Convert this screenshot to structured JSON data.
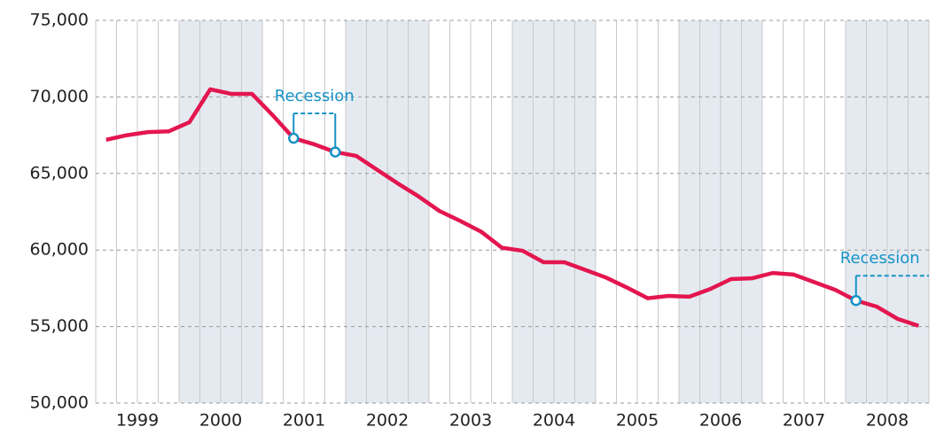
{
  "chart_data": {
    "type": "line",
    "x": [
      1999.125,
      1999.375,
      1999.625,
      1999.875,
      2000.125,
      2000.375,
      2000.625,
      2000.875,
      2001.125,
      2001.375,
      2001.625,
      2001.875,
      2002.125,
      2002.375,
      2002.625,
      2002.875,
      2003.125,
      2003.375,
      2003.625,
      2003.875,
      2004.125,
      2004.375,
      2004.625,
      2004.875,
      2005.125,
      2005.375,
      2005.625,
      2005.875,
      2006.125,
      2006.375,
      2006.625,
      2006.875,
      2007.125,
      2007.375,
      2007.625,
      2007.875,
      2008.125,
      2008.375,
      2008.625,
      2008.875
    ],
    "series": [
      {
        "color": "#e3164f",
        "values": [
          67200,
          67500,
          67700,
          67750,
          68350,
          70500,
          70200,
          70200,
          68800,
          67300,
          66900,
          66400,
          66150,
          65250,
          64350,
          63500,
          62550,
          61900,
          61200,
          60150,
          59950,
          59200,
          59200,
          58700,
          58200,
          57550,
          56850,
          57000,
          56950,
          57450,
          58100,
          58150,
          58500,
          58400,
          57900,
          57400,
          56700,
          56300,
          55500,
          55050
        ]
      }
    ],
    "xlim": [
      1999,
      2009
    ],
    "xticks": [
      {
        "value": 1999.5,
        "label": "1999"
      },
      {
        "value": 2000.5,
        "label": "2000"
      },
      {
        "value": 2001.5,
        "label": "2001"
      },
      {
        "value": 2002.5,
        "label": "2002"
      },
      {
        "value": 2003.5,
        "label": "2003"
      },
      {
        "value": 2004.5,
        "label": "2004"
      },
      {
        "value": 2005.5,
        "label": "2005"
      },
      {
        "value": 2006.5,
        "label": "2006"
      },
      {
        "value": 2007.5,
        "label": "2007"
      },
      {
        "value": 2008.5,
        "label": "2008"
      }
    ],
    "ylim": [
      50000,
      75000
    ],
    "yticks": [
      {
        "value": 50000,
        "label": "50,000"
      },
      {
        "value": 55000,
        "label": "55,000"
      },
      {
        "value": 60000,
        "label": "60,000"
      },
      {
        "value": 65000,
        "label": "65,000"
      },
      {
        "value": 70000,
        "label": "70,000"
      },
      {
        "value": 75000,
        "label": "75,000"
      }
    ],
    "grid": true,
    "bands": [
      [
        2000,
        2001
      ],
      [
        2002,
        2003
      ],
      [
        2004,
        2005
      ],
      [
        2006,
        2007
      ],
      [
        2008,
        2009
      ]
    ],
    "annotations": [
      {
        "text": "Recession",
        "x": [
          2001.375,
          2001.875
        ],
        "color": "#1793c6"
      },
      {
        "text": "Recession",
        "x": [
          2008.125
        ],
        "color": "#1793c6"
      }
    ]
  }
}
